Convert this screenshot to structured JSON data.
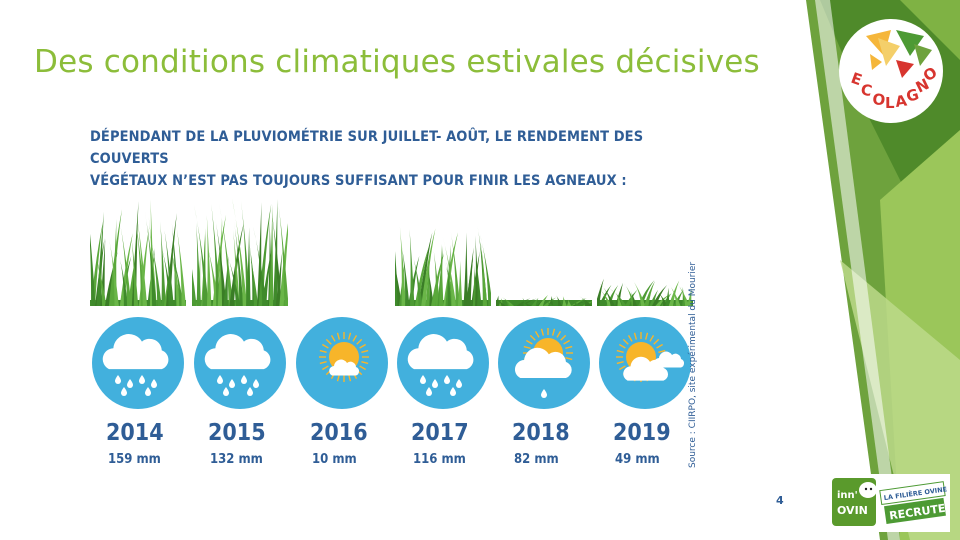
{
  "slide": {
    "title": "Des conditions climatiques estivales décisives",
    "headline_line1": "DÉPENDANT DE LA PLUVIOMÉTRIE SUR JUILLET- AOÛT, LE RENDEMENT DES COUVERTS",
    "headline_line2": "VÉGÉTAUX N’EST PAS TOUJOURS SUFFISANT POUR FINIR LES AGNEAUX :",
    "source": "Source : CIIRPO, site expérimental du Mourier",
    "page_number": "4"
  },
  "years": [
    {
      "year": "2014",
      "rain": "159 mm",
      "weather": "rain-cloud-icon",
      "grass_level": 1.0
    },
    {
      "year": "2015",
      "rain": "132 mm",
      "weather": "rain-cloud-icon",
      "grass_level": 1.0
    },
    {
      "year": "2016",
      "rain": "10 mm",
      "weather": "sun-small-cloud-icon",
      "grass_level": 0.0
    },
    {
      "year": "2017",
      "rain": "116 mm",
      "weather": "rain-cloud-icon",
      "grass_level": 0.75
    },
    {
      "year": "2018",
      "rain": "82 mm",
      "weather": "sun-cloud-rain-icon",
      "grass_level": 0.1
    },
    {
      "year": "2019",
      "rain": "49 mm",
      "weather": "sun-cloud-icon",
      "grass_level": 0.25
    }
  ],
  "logos": {
    "ecolagno": "ECOLAGNO",
    "inn_line1": "inn'",
    "inn_line2": "OVIN",
    "inn_tag1": "LA FILIÈRE OVINE",
    "inn_tag2": "RECRUTE"
  },
  "colors": {
    "title": "#8cbd3a",
    "text_blue": "#2f5d96",
    "circle_blue": "#42b0dd",
    "sun": "#f7b52a",
    "grass": "#4d9a34",
    "deco_green": "#6ea23d"
  }
}
